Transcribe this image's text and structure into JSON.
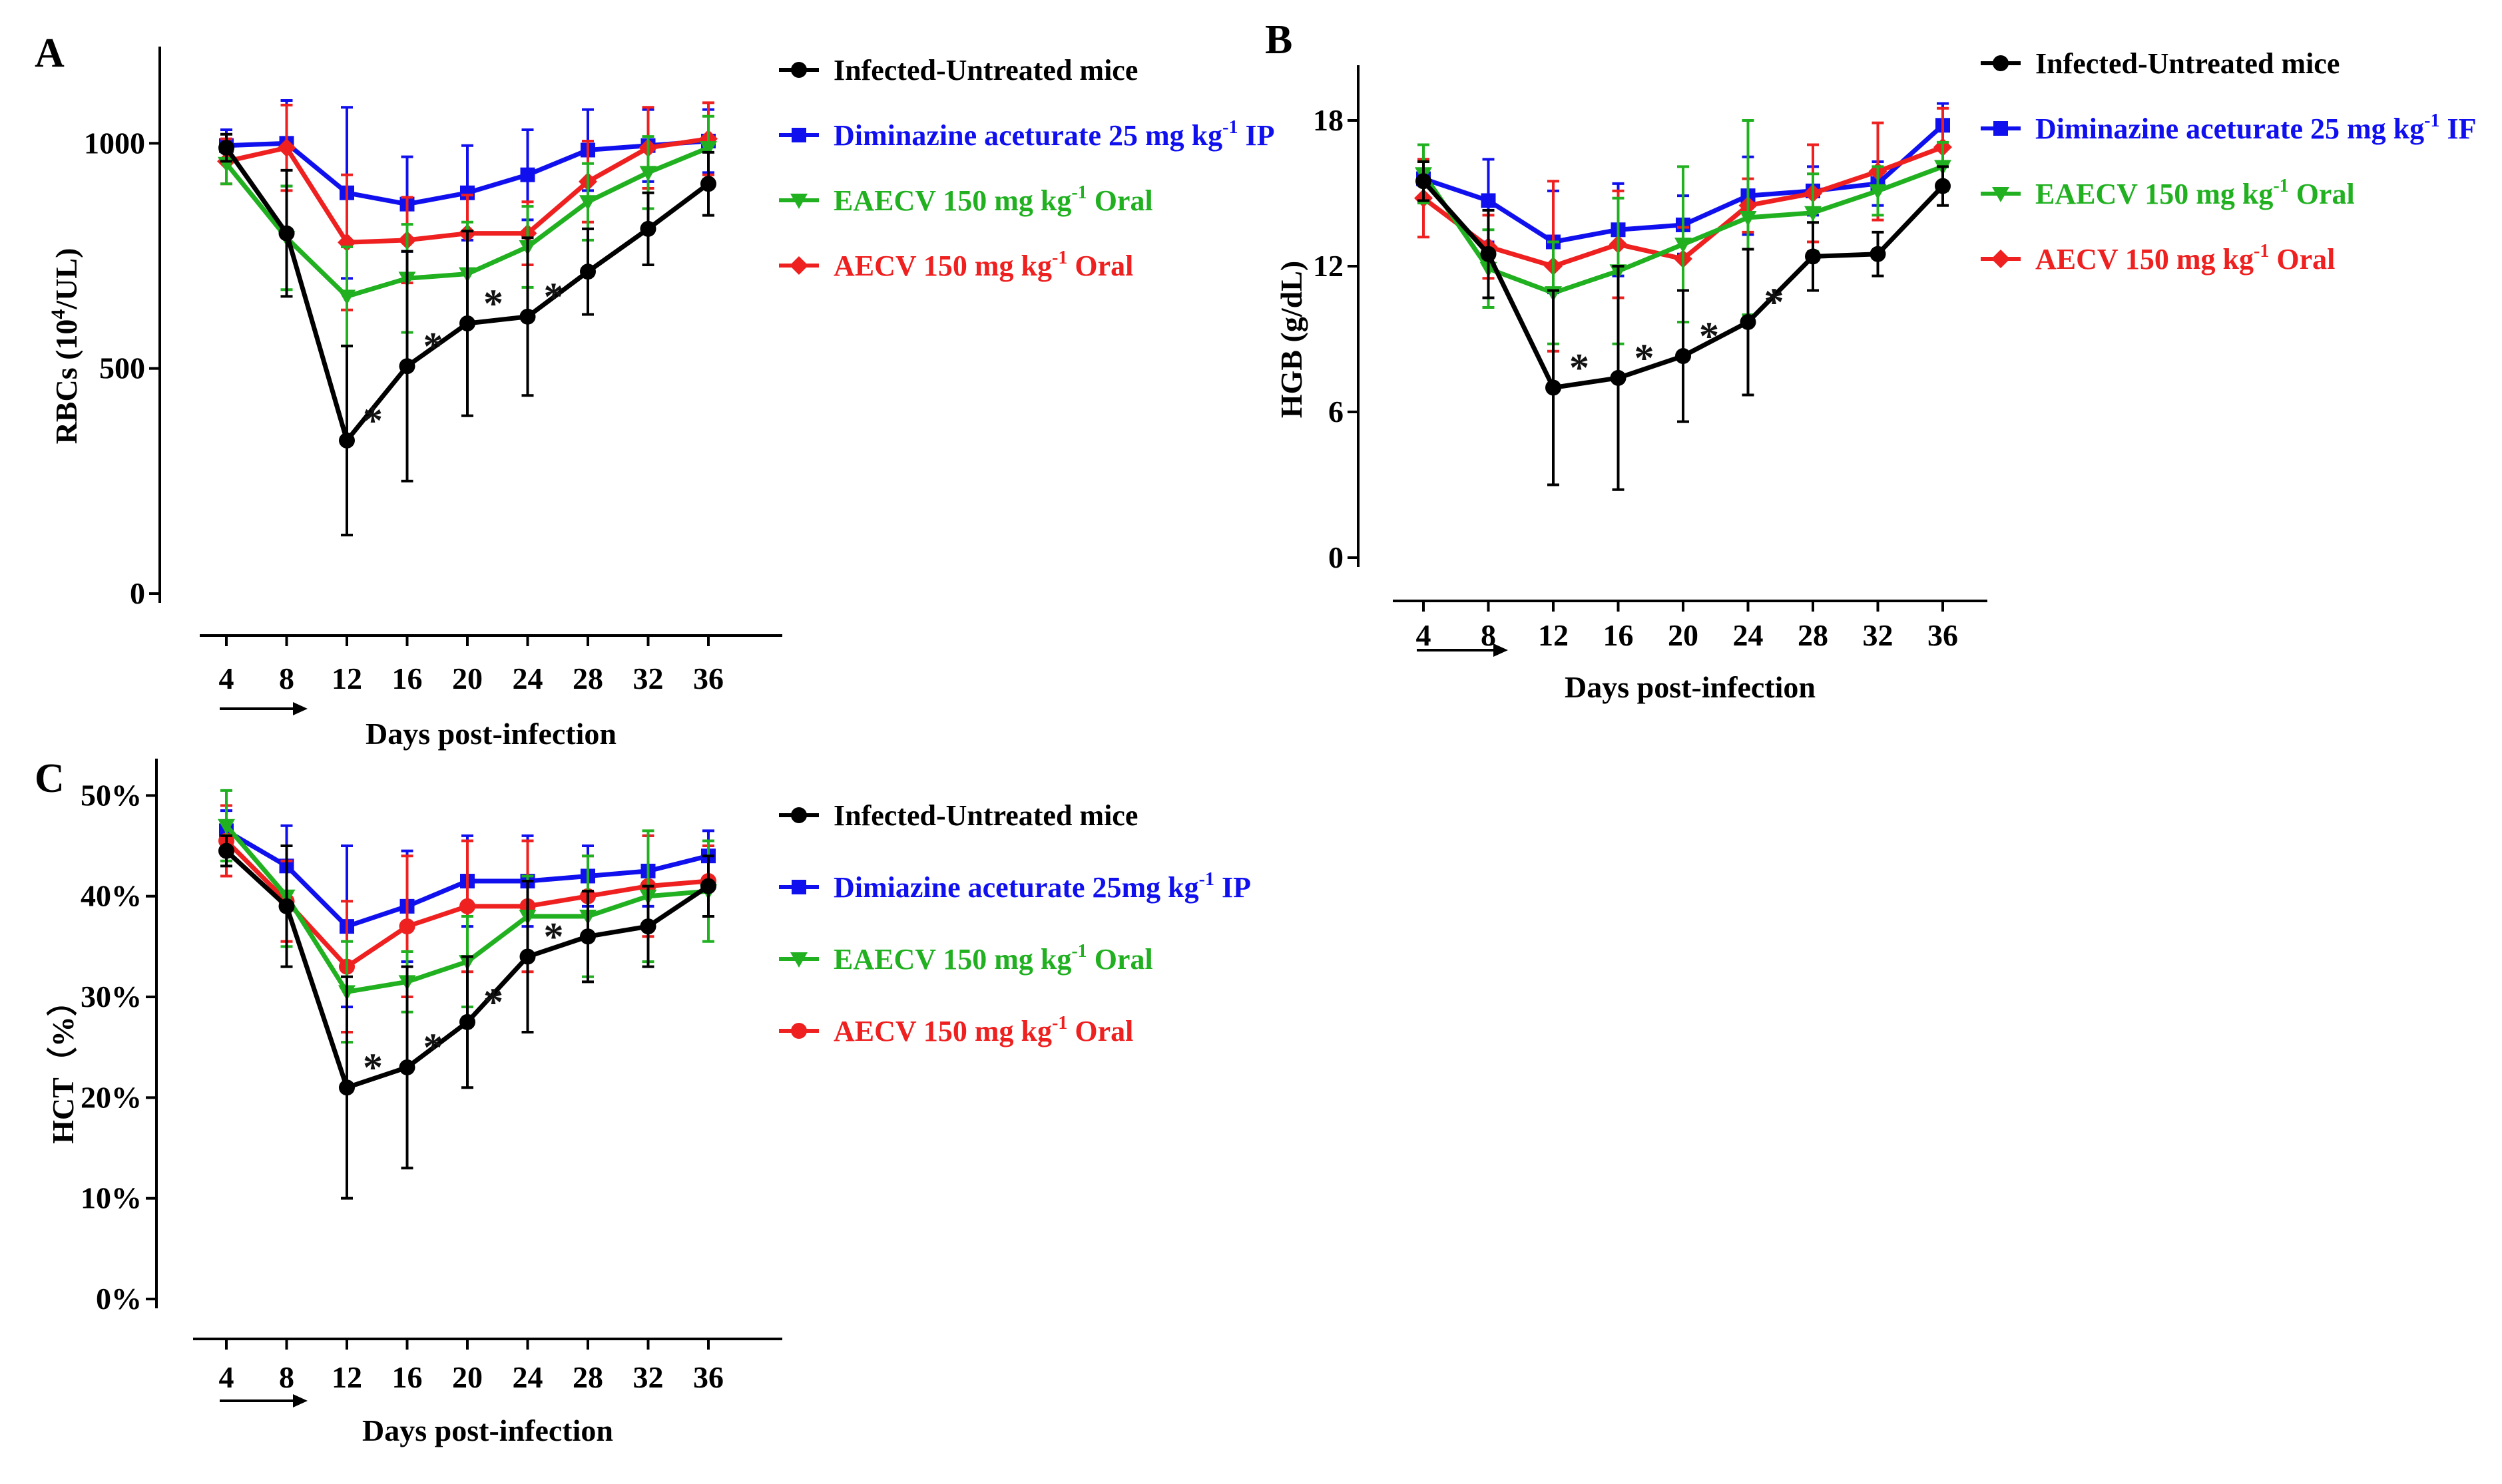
{
  "figure": {
    "x_ticks": [
      4,
      8,
      12,
      16,
      20,
      24,
      28,
      32,
      36
    ],
    "x_label": "Days post-infection"
  },
  "chart_data": [
    {
      "type": "line",
      "panel": "A",
      "ylabel_main": "RBCs (10",
      "ylabel_sup": "4",
      "ylabel_tail": "/UL)",
      "y_ticks": [
        "0",
        "500",
        "1000"
      ],
      "y_tick_values": [
        0,
        500,
        1000
      ],
      "ylim": [
        0,
        1200
      ],
      "x": [
        4,
        8,
        12,
        16,
        20,
        24,
        28,
        32,
        36
      ],
      "series": [
        {
          "name": "Infected-Untreated mice",
          "sup": "",
          "tail": "",
          "color": "#000000",
          "marker": "circle",
          "values": [
            990,
            800,
            340,
            505,
            600,
            615,
            715,
            810,
            910
          ],
          "errors": [
            30,
            140,
            210,
            255,
            205,
            175,
            95,
            80,
            70
          ]
        },
        {
          "name": "Diminazine aceturate  25 mg kg",
          "sup": "-1",
          "tail": " IP",
          "color": "#1010ee",
          "marker": "square",
          "values": [
            995,
            1000,
            890,
            865,
            890,
            930,
            985,
            995,
            1005
          ],
          "errors": [
            35,
            95,
            190,
            105,
            105,
            100,
            90,
            80,
            70
          ]
        },
        {
          "name": "EAECV 150 mg kg",
          "sup": "-1",
          "tail": " Oral",
          "color": "#20b020",
          "marker": "triangle-down",
          "values": [
            955,
            790,
            660,
            700,
            710,
            770,
            870,
            935,
            990
          ],
          "errors": [
            45,
            115,
            110,
            120,
            115,
            90,
            85,
            80,
            70
          ]
        },
        {
          "name": "AECV 150 mg kg",
          "sup": "-1",
          "tail": " Oral",
          "color": "#ee2020",
          "marker": "diamond",
          "values": [
            960,
            990,
            780,
            785,
            800,
            800,
            915,
            990,
            1010
          ],
          "errors": [
            50,
            95,
            150,
            95,
            85,
            70,
            90,
            90,
            80
          ]
        }
      ],
      "significance": [
        {
          "x": 12,
          "label": "*"
        },
        {
          "x": 16,
          "label": "*"
        },
        {
          "x": 20,
          "label": "*"
        },
        {
          "x": 24,
          "label": "*"
        }
      ]
    },
    {
      "type": "line",
      "panel": "B",
      "ylabel_main": "HGB (g/dL)",
      "ylabel_sup": "",
      "ylabel_tail": "",
      "y_ticks": [
        "0",
        "6",
        "12",
        "18"
      ],
      "y_tick_values": [
        0,
        6,
        12,
        18
      ],
      "ylim": [
        0,
        20
      ],
      "x": [
        4,
        8,
        12,
        16,
        20,
        24,
        28,
        32,
        36
      ],
      "series": [
        {
          "name": "Infected-Untreated mice",
          "sup": "",
          "tail": "",
          "color": "#000000",
          "marker": "circle",
          "values": [
            15.5,
            12.5,
            7.0,
            7.4,
            8.3,
            9.7,
            12.4,
            12.5,
            15.3
          ],
          "errors": [
            0.8,
            1.8,
            4.0,
            4.6,
            2.7,
            3.0,
            1.4,
            0.9,
            0.8
          ]
        },
        {
          "name": "Diminazine aceturate  25 mg kg",
          "sup": "-1",
          "tail": " IF",
          "color": "#1010ee",
          "marker": "square",
          "values": [
            15.6,
            14.7,
            13.0,
            13.5,
            13.7,
            14.9,
            15.1,
            15.4,
            17.8
          ],
          "errors": [
            0.8,
            1.7,
            2.1,
            1.9,
            1.2,
            1.6,
            1.0,
            0.9,
            0.9
          ]
        },
        {
          "name": "EAECV 150 mg kg",
          "sup": "-1",
          "tail": " Oral",
          "color": "#20b020",
          "marker": "triangle-down",
          "values": [
            15.8,
            11.9,
            10.9,
            11.8,
            12.9,
            14.0,
            14.2,
            15.1,
            16.1
          ],
          "errors": [
            1.2,
            1.6,
            2.1,
            3.0,
            3.2,
            4.0,
            1.6,
            1.0,
            1.0
          ]
        },
        {
          "name": "AECV 150 mg kg",
          "sup": "-1",
          "tail": " Oral",
          "color": "#ee2020",
          "marker": "diamond",
          "values": [
            14.8,
            12.8,
            12.0,
            12.9,
            12.3,
            14.5,
            15.0,
            15.9,
            16.9
          ],
          "errors": [
            1.6,
            1.3,
            3.5,
            2.2,
            1.3,
            1.1,
            2.0,
            2.0,
            1.6
          ]
        }
      ],
      "significance": [
        {
          "x": 12,
          "label": "*"
        },
        {
          "x": 16,
          "label": "*"
        },
        {
          "x": 20,
          "label": "*"
        },
        {
          "x": 24,
          "label": "*"
        }
      ]
    },
    {
      "type": "line",
      "panel": "C",
      "ylabel_main": "HCT（%）",
      "ylabel_sup": "",
      "ylabel_tail": "",
      "y_ticks": [
        "0%",
        "10%",
        "20%",
        "30%",
        "40%",
        "50%"
      ],
      "y_tick_values": [
        0,
        10,
        20,
        30,
        40,
        50
      ],
      "ylim": [
        0,
        53
      ],
      "x": [
        4,
        8,
        12,
        16,
        20,
        24,
        28,
        32,
        36
      ],
      "series": [
        {
          "name": "Infected-Untreated mice",
          "sup": "",
          "tail": "",
          "color": "#000000",
          "marker": "circle",
          "values": [
            44.5,
            39.0,
            21.0,
            23.0,
            27.5,
            34.0,
            36.0,
            37.0,
            41.0
          ],
          "errors": [
            1.5,
            6.0,
            11.0,
            10.0,
            6.5,
            7.5,
            4.5,
            4.0,
            3.0
          ]
        },
        {
          "name": "Dimiazine aceturate  25mg kg",
          "sup": "-1",
          "tail": " IP",
          "color": "#1010ee",
          "marker": "square",
          "values": [
            46.5,
            43.0,
            37.0,
            39.0,
            41.5,
            41.5,
            42.0,
            42.5,
            44.0
          ],
          "errors": [
            2.0,
            4.0,
            8.0,
            5.5,
            4.5,
            4.5,
            3.0,
            3.5,
            2.5
          ]
        },
        {
          "name": "EAECV 150 mg kg",
          "sup": "-1",
          "tail": " Oral",
          "color": "#20b020",
          "marker": "triangle-down",
          "values": [
            47.0,
            40.0,
            30.5,
            31.5,
            33.5,
            38.0,
            38.0,
            40.0,
            40.5
          ],
          "errors": [
            3.5,
            5.0,
            5.0,
            3.0,
            4.5,
            4.0,
            6.0,
            6.5,
            5.0
          ]
        },
        {
          "name": "AECV 150 mg kg",
          "sup": "-1",
          "tail": " Oral",
          "color": "#ee2020",
          "marker": "circle",
          "values": [
            45.5,
            39.5,
            33.0,
            37.0,
            39.0,
            39.0,
            40.0,
            41.0,
            41.5
          ],
          "errors": [
            3.5,
            4.0,
            6.5,
            7.0,
            6.5,
            6.5,
            4.0,
            5.0,
            3.5
          ]
        }
      ],
      "significance": [
        {
          "x": 12,
          "label": "*"
        },
        {
          "x": 16,
          "label": "*"
        },
        {
          "x": 20,
          "label": "*"
        },
        {
          "x": 24,
          "label": "*"
        }
      ]
    }
  ]
}
